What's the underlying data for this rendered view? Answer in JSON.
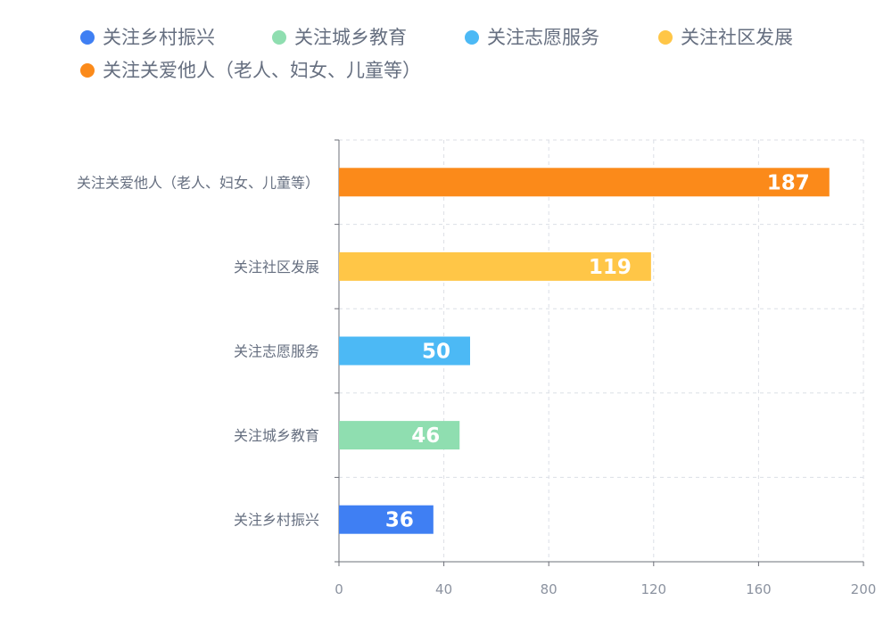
{
  "chart_data": {
    "type": "bar",
    "orientation": "horizontal",
    "categories": [
      "关注乡村振兴",
      "关注城乡教育",
      "关注志愿服务",
      "关注社区发展",
      "关注关爱他人（老人、妇女、儿童等）"
    ],
    "values": [
      36,
      46,
      50,
      119,
      187
    ],
    "colors": [
      "#3f7ff3",
      "#8fdeb0",
      "#4cb9f5",
      "#ffc647",
      "#fb8a1a"
    ],
    "legend": [
      "关注乡村振兴",
      "关注城乡教育",
      "关注志愿服务",
      "关注社区发展",
      "关注关爱他人（老人、妇女、儿童等）"
    ],
    "legend_position": "top-left",
    "xlim": [
      0,
      200
    ],
    "xticks": [
      0,
      40,
      80,
      120,
      160,
      200
    ],
    "grid": true,
    "data_labels": true
  }
}
